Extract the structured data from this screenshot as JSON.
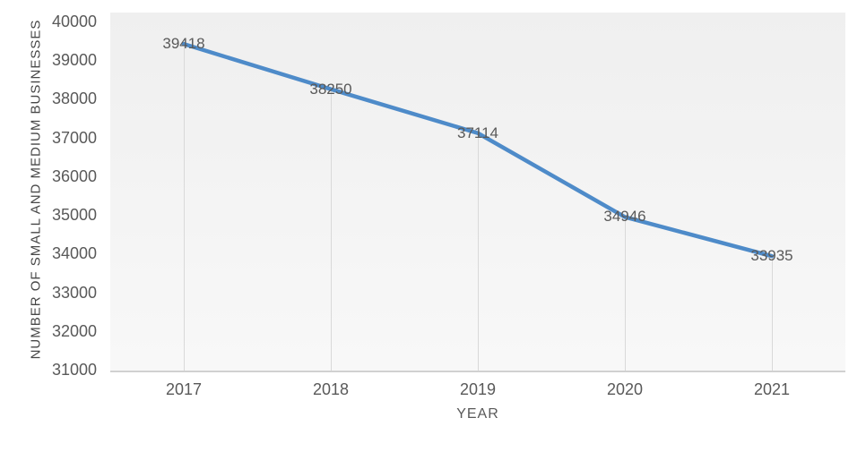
{
  "chart_data": {
    "type": "line",
    "categories": [
      "2017",
      "2018",
      "2019",
      "2020",
      "2021"
    ],
    "values": [
      39418,
      38250,
      37114,
      34946,
      33935
    ],
    "title": "",
    "xlabel": "YEAR",
    "ylabel": "NUMBER OF SMALL AND MEDIUM BUSINESSES",
    "ylim": [
      31000,
      40000
    ],
    "ytick_step": 1000,
    "y_ticks": [
      40000,
      39000,
      38000,
      37000,
      36000,
      35000,
      34000,
      33000,
      32000,
      31000
    ],
    "data_labels_shown": true,
    "legend": "none",
    "grid": "drop-lines-vertical",
    "colors": {
      "line": "#4e8bc9",
      "tick_label": "#595959",
      "data_label": "#595959",
      "axis_title": "#474747",
      "plot_bg_top": "#efefef",
      "plot_bg_bottom": "#f8f8f8",
      "axis_line": "#d1d1d1",
      "drop_line": "#d9d9d9",
      "background": "#ffffff"
    }
  }
}
